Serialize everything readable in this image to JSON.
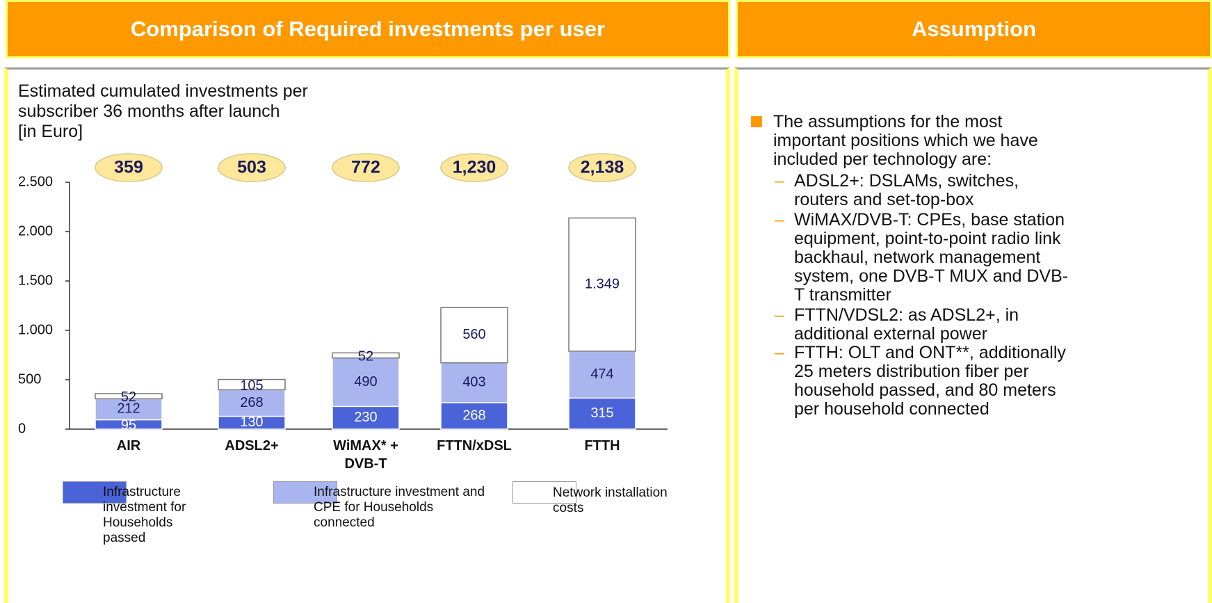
{
  "header": {
    "left_title": "Comparison of Required investments per user",
    "right_title": "Assumption"
  },
  "chart_data": {
    "type": "stacked_bar",
    "subtitle": [
      "Estimated cumulated investments per",
      "subscriber 36 months after launch",
      "[in Euro]"
    ],
    "categories": [
      "AIR",
      "ADSL2+",
      "WiMAX* + DVB-T",
      "FTTN/xDSL",
      "FTTH"
    ],
    "series": [
      {
        "name": "Infrastructure investment for Households passed",
        "color": "#4a63d8",
        "values": [
          95,
          130,
          230,
          268,
          315
        ]
      },
      {
        "name": "Infrastructure investment and CPE for Households connected",
        "color": "#a9b5ee",
        "values": [
          212,
          268,
          490,
          403,
          474
        ]
      },
      {
        "name": "Network installation costs",
        "color": "#ffffff",
        "values": [
          52,
          105,
          52,
          560,
          1349
        ],
        "value_labels": [
          "52",
          "105",
          "52",
          "560",
          "1.349"
        ]
      }
    ],
    "totals": {
      "values": [
        359,
        503,
        772,
        1230,
        2138
      ],
      "value_labels": [
        "359",
        "503",
        "772",
        "1,230",
        "2,138"
      ]
    },
    "ylim": [
      0,
      2500
    ],
    "yticks": [
      0,
      500,
      {
        "value": 1000,
        "label": "1.000"
      },
      {
        "value": 1500,
        "label": "1.500"
      },
      {
        "value": 2000,
        "label": "2.000"
      },
      {
        "value": 2500,
        "label": "2.500"
      }
    ]
  },
  "assumptions": {
    "intro": "The assumptions for the most important positions which we have included per technology are:",
    "items": [
      "ADSL2+: DSLAMs, switches, routers and set-top-box",
      "WiMAX/DVB-T: CPEs, base station equipment, point-to-point radio link backhaul, network management system, one DVB-T MUX and DVB-T transmitter",
      "FTTN/VDSL2: as ADSL2+, in additional external power",
      "FTTH: OLT and ONT**, additionally 25 meters distribution fiber per household passed, and 80 meters per household connected"
    ]
  }
}
